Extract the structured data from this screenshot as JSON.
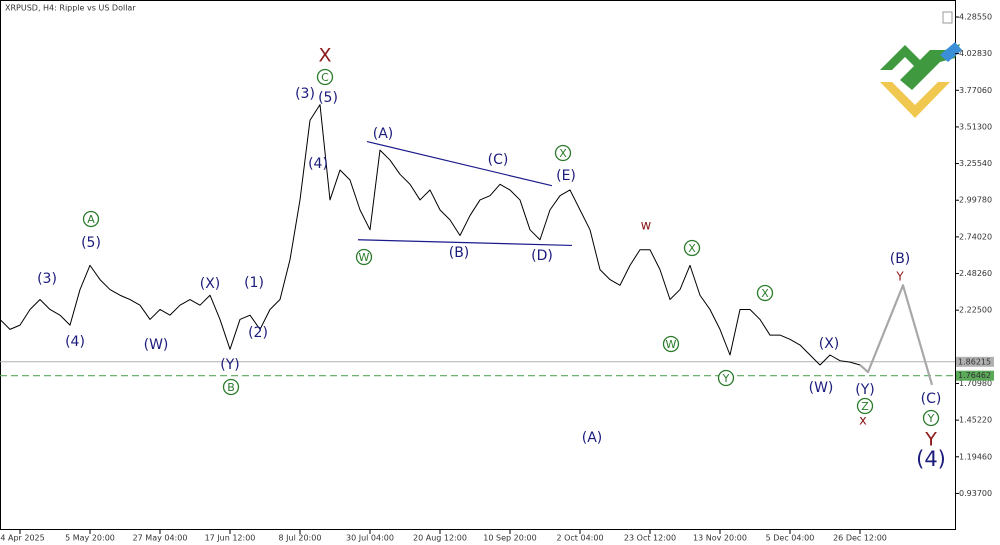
{
  "chart_data": {
    "type": "line",
    "title": "XRPUSD, H4:  Ripple vs US Dollar",
    "ylim": [
      0.68,
      4.37
    ],
    "xlim": [
      0,
      95.5
    ],
    "yticks": [
      {
        "value": 4.2855,
        "label": "4.28550"
      },
      {
        "value": 4.0283,
        "label": "4.02830"
      },
      {
        "value": 3.7706,
        "label": "3.77060"
      },
      {
        "value": 3.513,
        "label": "3.51300"
      },
      {
        "value": 3.2554,
        "label": "3.25540"
      },
      {
        "value": 2.9978,
        "label": "2.99780"
      },
      {
        "value": 2.7402,
        "label": "2.74020"
      },
      {
        "value": 2.4826,
        "label": "2.48260"
      },
      {
        "value": 2.225,
        "label": "2.22500"
      },
      {
        "value": 1.7098,
        "label": "1.70980"
      },
      {
        "value": 1.4522,
        "label": "1.45220"
      },
      {
        "value": 1.1946,
        "label": "1.19460"
      },
      {
        "value": 0.937,
        "label": "0.93700"
      }
    ],
    "xticks": [
      {
        "value": 2,
        "label": "14 Apr 2025"
      },
      {
        "value": 9,
        "label": "5 May 20:00"
      },
      {
        "value": 16,
        "label": "27 May 04:00"
      },
      {
        "value": 23,
        "label": "17 Jun 12:00"
      },
      {
        "value": 30,
        "label": "8 Jul 20:00"
      },
      {
        "value": 37,
        "label": "30 Jul 04:00"
      },
      {
        "value": 44,
        "label": "20 Aug 12:00"
      },
      {
        "value": 51,
        "label": "10 Sep 20:00"
      },
      {
        "value": 58,
        "label": "2 Oct 04:00"
      },
      {
        "value": 65,
        "label": "23 Oct 12:00"
      },
      {
        "value": 72,
        "label": "13 Nov 20:00"
      },
      {
        "value": 79,
        "label": "5 Dec 04:00"
      },
      {
        "value": 86,
        "label": "26 Dec 12:00"
      }
    ],
    "series": [
      {
        "color": "#000000",
        "values": [
          2.16,
          2.09,
          2.12,
          2.23,
          2.3,
          2.23,
          2.19,
          2.12,
          2.37,
          2.54,
          2.44,
          2.37,
          2.33,
          2.3,
          2.26,
          2.16,
          2.23,
          2.19,
          2.26,
          2.3,
          2.26,
          2.33,
          2.16,
          1.95,
          2.16,
          2.19,
          2.09,
          2.23,
          2.3,
          2.58,
          3.0,
          3.56,
          3.67,
          3.0,
          3.21,
          3.14,
          2.93,
          2.79,
          3.35,
          3.28,
          3.18,
          3.11,
          3.0,
          3.07,
          2.93,
          2.86,
          2.75,
          2.89,
          3.0,
          3.03,
          3.11,
          3.07,
          3.0,
          2.79,
          2.72,
          2.93,
          3.03,
          3.07,
          2.93,
          2.79,
          2.51,
          2.44,
          2.4,
          2.54,
          2.65,
          2.65,
          2.51,
          2.3,
          2.37,
          2.54,
          2.33,
          2.23,
          2.09,
          1.91,
          2.23,
          2.23,
          2.16,
          2.05,
          2.05,
          2.02,
          1.98,
          1.91,
          1.84,
          1.91,
          1.87,
          1.86,
          1.84
        ]
      },
      {
        "color": "#a8a8a8",
        "x": [
          86,
          86.8,
          90.3,
          93.2
        ],
        "values": [
          1.84,
          1.79,
          2.4,
          1.7
        ]
      }
    ],
    "trendlines": [
      {
        "color": "#1a1a8c",
        "x": [
          36.7,
          55.2
        ],
        "values": [
          3.41,
          3.1
        ]
      },
      {
        "color": "#1a1a8c",
        "x": [
          35.8,
          57.2
        ],
        "values": [
          2.72,
          2.68
        ]
      }
    ],
    "levels": [
      {
        "value": 1.86215,
        "label": "1.86215",
        "color": "#b0b0b0"
      },
      {
        "value": 1.76462,
        "label": "1.76462",
        "color": "#5aaa5a"
      }
    ],
    "annotations": [
      {
        "text": "(3)"
      },
      {
        "text": "(4)"
      },
      {
        "text": "A",
        "circled": true
      },
      {
        "text": "(5)"
      },
      {
        "text": "(W)"
      },
      {
        "text": "(X)"
      },
      {
        "text": "(1)"
      },
      {
        "text": "(2)"
      },
      {
        "text": "(Y)"
      },
      {
        "text": "B",
        "circled": true
      },
      {
        "text": "X"
      },
      {
        "text": "C",
        "circled": true
      },
      {
        "text": "(3)"
      },
      {
        "text": "(5)"
      },
      {
        "text": "(4)"
      },
      {
        "text": "(A)"
      },
      {
        "text": "W",
        "circled": true
      },
      {
        "text": "(B)"
      },
      {
        "text": "(C)"
      },
      {
        "text": "X",
        "circled": true
      },
      {
        "text": "(E)"
      },
      {
        "text": "(D)"
      },
      {
        "text": "(A)"
      },
      {
        "text": "w"
      },
      {
        "text": "X",
        "circled": true
      },
      {
        "text": "W",
        "circled": true
      },
      {
        "text": "X",
        "circled": true
      },
      {
        "text": "Y",
        "circled": true
      },
      {
        "text": "(X)"
      },
      {
        "text": "(W)"
      },
      {
        "text": "(Y)"
      },
      {
        "text": "Z",
        "circled": true
      },
      {
        "text": "x"
      },
      {
        "text": "(B)"
      },
      {
        "text": "Y"
      },
      {
        "text": "(C)"
      },
      {
        "text": "Y",
        "circled": true
      },
      {
        "text": "Y"
      },
      {
        "text": "(4)"
      }
    ]
  }
}
